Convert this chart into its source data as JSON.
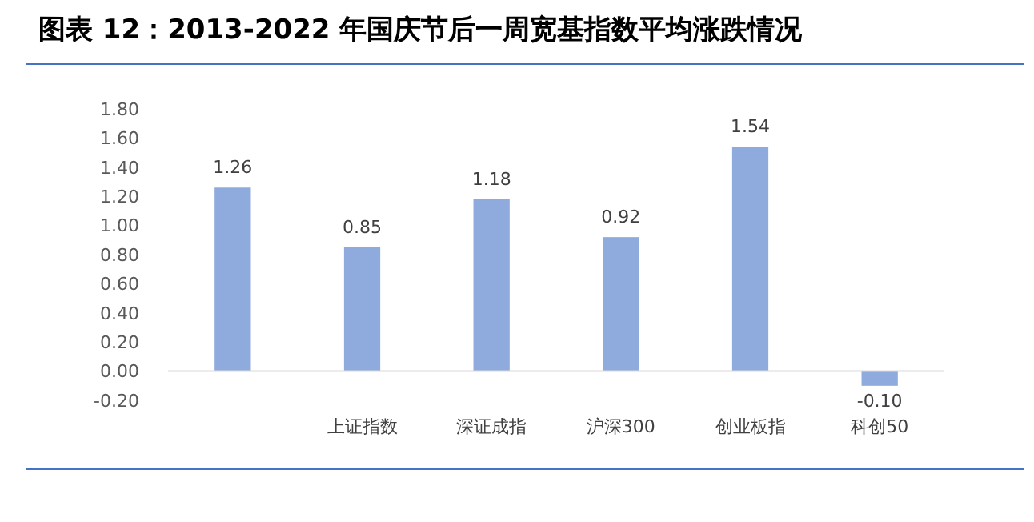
{
  "chart_data": {
    "type": "bar",
    "title": "图表 12：2013-2022 年国庆节后一周宽基指数平均涨跌情况",
    "categories": [
      null,
      "上证指数",
      "深证成指",
      "沪深300",
      "创业板指",
      "科创50"
    ],
    "values": [
      1.26,
      0.85,
      1.18,
      0.92,
      1.54,
      -0.1
    ],
    "value_labels": [
      "1.26",
      "0.85",
      "1.18",
      "0.92",
      "1.54",
      "-0.10"
    ],
    "color": "#8faadc",
    "ylim": [
      -0.2,
      1.8
    ],
    "yticks": [
      {
        "value": -0.2,
        "label": "-0.20"
      },
      {
        "value": 0,
        "label": "0.00"
      },
      {
        "value": 0.2,
        "label": "0.20"
      },
      {
        "value": 0.4,
        "label": "0.40"
      },
      {
        "value": 0.6,
        "label": "0.60"
      },
      {
        "value": 0.8,
        "label": "0.80"
      },
      {
        "value": 1,
        "label": "1.00"
      },
      {
        "value": 1.2,
        "label": "1.20"
      },
      {
        "value": 1.4,
        "label": "1.40"
      },
      {
        "value": 1.6,
        "label": "1.60"
      },
      {
        "value": 1.8,
        "label": "1.80"
      }
    ],
    "grid": false
  }
}
